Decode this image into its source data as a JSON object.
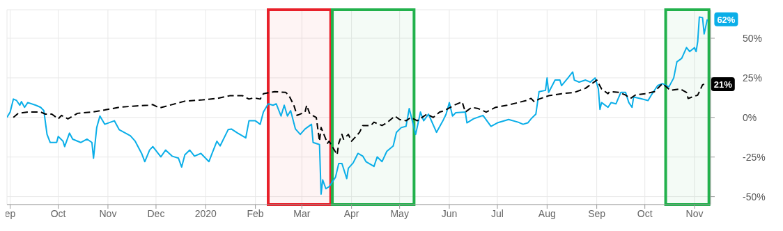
{
  "chart_data": {
    "type": "line",
    "xlim": [
      "2019-08-30",
      "2020-11-11"
    ],
    "xticks": [
      {
        "value": "2019-09-01",
        "label": "ep"
      },
      {
        "value": "2019-10-01",
        "label": "Oct"
      },
      {
        "value": "2019-11-01",
        "label": "Nov"
      },
      {
        "value": "2019-12-01",
        "label": "Dec"
      },
      {
        "value": "2020-01-01",
        "label": "2020"
      },
      {
        "value": "2020-02-01",
        "label": "Feb"
      },
      {
        "value": "2020-03-01",
        "label": "Mar"
      },
      {
        "value": "2020-04-01",
        "label": "Apr"
      },
      {
        "value": "2020-05-01",
        "label": "May"
      },
      {
        "value": "2020-06-01",
        "label": "Jun"
      },
      {
        "value": "2020-07-01",
        "label": "Jul"
      },
      {
        "value": "2020-08-01",
        "label": "Aug"
      },
      {
        "value": "2020-09-01",
        "label": "Sep"
      },
      {
        "value": "2020-10-01",
        "label": "Oct"
      },
      {
        "value": "2020-11-01",
        "label": "Nov"
      }
    ],
    "ylim": [
      -55,
      68
    ],
    "yticks": [
      {
        "value": -50,
        "label": "-50%"
      },
      {
        "value": -25,
        "label": "-25%"
      },
      {
        "value": 0,
        "label": "0%"
      },
      {
        "value": 25,
        "label": "25%"
      },
      {
        "value": 50,
        "label": "50%"
      }
    ],
    "grid": true,
    "annotations": [
      {
        "text": "62%",
        "x": "2020-11-09",
        "y": 62
      },
      {
        "text": "21%",
        "x": "2020-11-07",
        "y": 21
      }
    ],
    "bands": [
      {
        "axis": "x",
        "from": "2020-02-09",
        "to": "2020-03-19",
        "color": "#e8202a"
      },
      {
        "axis": "x",
        "from": "2020-03-20",
        "to": "2020-05-10",
        "color": "#22b14c"
      },
      {
        "axis": "x",
        "from": "2020-10-14",
        "to": "2020-11-10",
        "color": "#22b14c"
      }
    ],
    "series": [
      {
        "color": "#0aaee8",
        "line_style": "solid",
        "x": [
          "2019-08-30",
          "2019-09-01",
          "2019-09-03",
          "2019-09-05",
          "2019-09-07",
          "2019-09-08",
          "2019-09-10",
          "2019-09-12",
          "2019-09-17",
          "2019-09-20",
          "2019-09-22",
          "2019-09-24",
          "2019-09-26",
          "2019-09-30",
          "2019-10-01",
          "2019-10-04",
          "2019-10-05",
          "2019-10-08",
          "2019-10-10",
          "2019-10-15",
          "2019-10-19",
          "2019-10-22",
          "2019-10-23",
          "2019-10-25",
          "2019-10-27",
          "2019-10-30",
          "2019-11-05",
          "2019-11-08",
          "2019-11-15",
          "2019-11-18",
          "2019-11-22",
          "2019-11-24",
          "2019-11-27",
          "2019-11-29",
          "2019-12-04",
          "2019-12-07",
          "2019-12-11",
          "2019-12-15",
          "2019-12-17",
          "2019-12-19",
          "2019-12-22",
          "2019-12-25",
          "2019-12-29",
          "2020-01-03",
          "2020-01-05",
          "2020-01-08",
          "2020-01-10",
          "2020-01-15",
          "2020-01-17",
          "2020-01-21",
          "2020-01-26",
          "2020-01-28",
          "2020-02-01",
          "2020-02-04",
          "2020-02-06",
          "2020-02-09",
          "2020-02-12",
          "2020-02-14",
          "2020-02-17",
          "2020-02-19",
          "2020-02-21",
          "2020-02-23",
          "2020-02-26",
          "2020-02-29",
          "2020-03-03",
          "2020-03-07",
          "2020-03-08",
          "2020-03-12",
          "2020-03-13",
          "2020-03-14",
          "2020-03-16",
          "2020-03-18",
          "2020-03-22",
          "2020-03-24",
          "2020-03-26",
          "2020-03-29",
          "2020-03-30",
          "2020-04-02",
          "2020-04-05",
          "2020-04-08",
          "2020-04-10",
          "2020-04-15",
          "2020-04-17",
          "2020-04-20",
          "2020-04-23",
          "2020-04-27",
          "2020-04-29",
          "2020-05-02",
          "2020-05-05",
          "2020-05-07",
          "2020-05-11",
          "2020-05-14",
          "2020-05-16",
          "2020-05-19",
          "2020-05-24",
          "2020-05-28",
          "2020-05-30",
          "2020-06-01",
          "2020-06-03",
          "2020-06-05",
          "2020-06-11",
          "2020-06-12",
          "2020-06-16",
          "2020-06-22",
          "2020-06-27",
          "2020-07-01",
          "2020-07-08",
          "2020-07-14",
          "2020-07-17",
          "2020-07-20",
          "2020-07-22",
          "2020-07-25",
          "2020-07-27",
          "2020-07-31",
          "2020-08-01",
          "2020-08-02",
          "2020-08-06",
          "2020-08-09",
          "2020-08-10",
          "2020-08-14",
          "2020-08-17",
          "2020-08-18",
          "2020-08-21",
          "2020-08-25",
          "2020-08-28",
          "2020-08-31",
          "2020-09-02",
          "2020-09-03",
          "2020-09-04",
          "2020-09-08",
          "2020-09-10",
          "2020-09-13",
          "2020-09-16",
          "2020-09-19",
          "2020-09-21",
          "2020-09-23",
          "2020-09-24",
          "2020-09-28",
          "2020-10-03",
          "2020-10-05",
          "2020-10-09",
          "2020-10-12",
          "2020-10-16",
          "2020-10-19",
          "2020-10-21",
          "2020-10-24",
          "2020-10-27",
          "2020-10-29",
          "2020-11-01",
          "2020-11-02",
          "2020-11-03",
          "2020-11-04",
          "2020-11-06",
          "2020-11-07",
          "2020-11-09"
        ],
        "values": [
          0,
          3.4,
          11.6,
          10.7,
          7.7,
          10,
          6.4,
          9.4,
          7.7,
          6.4,
          4.3,
          -10.7,
          -15.8,
          -15.8,
          -12,
          -15,
          -18.4,
          -9.9,
          -13.7,
          -15.8,
          -13.7,
          -15.8,
          -25.7,
          -6.4,
          0.9,
          -4.3,
          -2.1,
          -7.7,
          -11.6,
          -15,
          -22.7,
          -27.9,
          -20.6,
          -18.4,
          -24.9,
          -20.6,
          -24.4,
          -25.7,
          -31.3,
          -23.6,
          -20.6,
          -24.4,
          -22.7,
          -27.9,
          -22.7,
          -15,
          -18,
          -7.7,
          -7.3,
          -9.9,
          -12.9,
          -2.1,
          -2.1,
          -4.3,
          3.4,
          8.6,
          7.7,
          8.6,
          0.9,
          7.7,
          0.9,
          4.3,
          -7.3,
          -10.7,
          -7.3,
          -4.3,
          -15.8,
          -17.1,
          -48.4,
          -39.4,
          -45,
          -43.7,
          -37.7,
          -29.1,
          -29.1,
          -38.6,
          -32.1,
          -28.7,
          -22.7,
          -24.4,
          -27.9,
          -30.9,
          -24.9,
          -27.9,
          -21.4,
          -18,
          -9.4,
          -6.4,
          -5.6,
          5.6,
          -10.7,
          3.4,
          -2.1,
          2.1,
          -9.4,
          -2.1,
          2.1,
          9.4,
          0.9,
          3,
          3.4,
          -3.4,
          -0.9,
          1.3,
          -5.6,
          -3.4,
          -1.3,
          -3,
          -4.3,
          -3.4,
          -0.9,
          2.1,
          16.3,
          17.1,
          24.9,
          15.8,
          23.6,
          23.6,
          20.1,
          24.9,
          28.7,
          23.6,
          22.3,
          23.6,
          22.3,
          24.9,
          18,
          5.1,
          9.4,
          6.4,
          9.4,
          8.6,
          15.8,
          15.8,
          9.4,
          6.4,
          12.9,
          12,
          10.7,
          14.1,
          20.1,
          21.4,
          19.3,
          24.9,
          35.1,
          37.3,
          44.1,
          41.6,
          44.1,
          41.6,
          48,
          63.4,
          63,
          52.7,
          62
        ]
      },
      {
        "color": "#000000",
        "line_style": "dashed",
        "x": [
          "2019-09-03",
          "2019-09-06",
          "2019-09-12",
          "2019-09-20",
          "2019-09-23",
          "2019-09-27",
          "2019-10-01",
          "2019-10-03",
          "2019-10-07",
          "2019-10-13",
          "2019-10-22",
          "2019-10-30",
          "2019-11-08",
          "2019-11-19",
          "2019-11-26",
          "2019-11-29",
          "2019-12-03",
          "2019-12-11",
          "2019-12-19",
          "2019-12-30",
          "2020-01-08",
          "2020-01-16",
          "2020-01-24",
          "2020-01-28",
          "2020-01-31",
          "2020-02-04",
          "2020-02-06",
          "2020-02-13",
          "2020-02-20",
          "2020-02-22",
          "2020-02-25",
          "2020-02-27",
          "2020-03-03",
          "2020-03-04",
          "2020-03-06",
          "2020-03-10",
          "2020-03-12",
          "2020-03-13",
          "2020-03-17",
          "2020-03-18",
          "2020-03-23",
          "2020-03-24",
          "2020-03-26",
          "2020-03-27",
          "2020-03-30",
          "2020-04-01",
          "2020-04-06",
          "2020-04-08",
          "2020-04-13",
          "2020-04-15",
          "2020-04-20",
          "2020-04-23",
          "2020-04-28",
          "2020-05-01",
          "2020-05-05",
          "2020-05-08",
          "2020-05-12",
          "2020-05-18",
          "2020-05-22",
          "2020-05-26",
          "2020-05-29",
          "2020-06-04",
          "2020-06-09",
          "2020-06-11",
          "2020-06-15",
          "2020-06-19",
          "2020-06-24",
          "2020-06-30",
          "2020-07-07",
          "2020-07-14",
          "2020-07-19",
          "2020-07-22",
          "2020-07-24",
          "2020-07-27",
          "2020-08-02",
          "2020-08-10",
          "2020-08-18",
          "2020-08-25",
          "2020-09-01",
          "2020-09-04",
          "2020-09-08",
          "2020-09-09",
          "2020-09-15",
          "2020-09-19",
          "2020-09-22",
          "2020-09-25",
          "2020-10-01",
          "2020-10-07",
          "2020-10-12",
          "2020-10-17",
          "2020-10-23",
          "2020-10-27",
          "2020-10-28",
          "2020-11-03",
          "2020-11-06",
          "2020-11-07"
        ],
        "values": [
          0,
          2.6,
          3.4,
          3.4,
          2.1,
          2.1,
          -0.9,
          1.3,
          -0.9,
          2.6,
          3.4,
          4.7,
          6.4,
          7.3,
          7.7,
          8.1,
          6,
          8.1,
          10.3,
          11.1,
          12,
          13.7,
          13.7,
          11.6,
          12.4,
          11.6,
          15,
          16.3,
          15.8,
          13.7,
          7.7,
          1.3,
          3.4,
          7.7,
          2.1,
          0,
          -15,
          -6.4,
          -16.3,
          -15,
          -23.6,
          -16.3,
          -10.7,
          -13.7,
          -10.7,
          -15,
          -9.4,
          -5.1,
          -5.1,
          -3,
          -5.1,
          -3.4,
          0.9,
          -1.3,
          -2.1,
          0,
          -2.1,
          2.1,
          0,
          3.4,
          4.3,
          7.7,
          9.9,
          3.4,
          6.4,
          5.6,
          3.4,
          6.4,
          7.7,
          9.4,
          10.7,
          12,
          9.9,
          11.6,
          13.7,
          15,
          15.8,
          18.4,
          23.6,
          18,
          15,
          16.3,
          15.8,
          14.1,
          12,
          14.1,
          15,
          16.3,
          21.4,
          17.1,
          18,
          15.8,
          12,
          14.1,
          20.6,
          21
        ]
      }
    ]
  }
}
